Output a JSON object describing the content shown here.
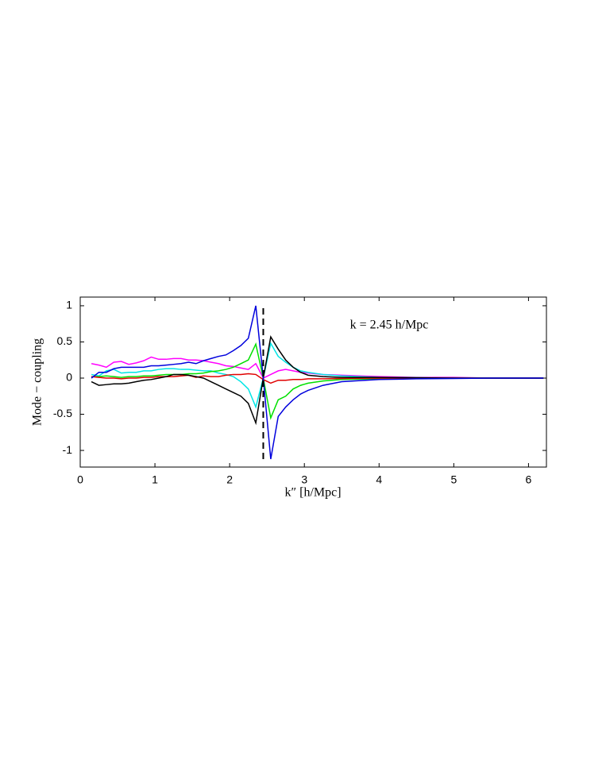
{
  "chart_data": {
    "type": "line",
    "xlabel": "k″  [h/Mpc]",
    "ylabel": "Mode − coupling",
    "annotation": "k = 2.45 h/Mpc",
    "xlim": [
      0,
      6.24
    ],
    "ylim": [
      -1.23,
      1.12
    ],
    "xticks": [
      0,
      1,
      2,
      3,
      4,
      5,
      6
    ],
    "yticks": [
      -1,
      -0.5,
      0,
      0.5,
      1
    ],
    "marker": {
      "x": 2.45,
      "y": [
        -1.12,
        0.97
      ],
      "color": "#000000"
    },
    "x": [
      0.15,
      0.25,
      0.35,
      0.45,
      0.55,
      0.65,
      0.75,
      0.85,
      0.95,
      1.05,
      1.15,
      1.25,
      1.35,
      1.45,
      1.55,
      1.65,
      1.75,
      1.85,
      1.95,
      2.05,
      2.15,
      2.25,
      2.35,
      2.45,
      2.55,
      2.65,
      2.75,
      2.85,
      2.95,
      3.05,
      3.25,
      3.5,
      4,
      4.5,
      5,
      5.5,
      6,
      6.2
    ],
    "series": [
      {
        "color": "#ff00ff",
        "values": [
          0.2,
          0.18,
          0.15,
          0.22,
          0.23,
          0.19,
          0.21,
          0.24,
          0.29,
          0.26,
          0.26,
          0.27,
          0.27,
          0.25,
          0.25,
          0.24,
          0.22,
          0.2,
          0.17,
          0.16,
          0.14,
          0.12,
          0.2,
          0,
          0.05,
          0.1,
          0.12,
          0.1,
          0.08,
          0.07,
          0.05,
          0.04,
          0.02,
          0.01,
          0.01,
          0,
          0,
          0
        ]
      },
      {
        "color": "#00e5e5",
        "values": [
          0.05,
          0.03,
          0.1,
          0.12,
          0.07,
          0.08,
          0.08,
          0.1,
          0.1,
          0.12,
          0.13,
          0.13,
          0.12,
          0.12,
          0.11,
          0.1,
          0.1,
          0.07,
          0.05,
          0.02,
          -0.05,
          -0.15,
          -0.4,
          0,
          0.48,
          0.3,
          0.22,
          0.15,
          0.1,
          0.08,
          0.05,
          0.03,
          0.01,
          0.005,
          0,
          0,
          0,
          0
        ]
      },
      {
        "color": "#00e000",
        "values": [
          0.02,
          0.02,
          0.03,
          0.02,
          0.01,
          0.02,
          0.02,
          0.03,
          0.03,
          0.04,
          0.05,
          0.05,
          0.05,
          0.06,
          0.06,
          0.07,
          0.09,
          0.1,
          0.12,
          0.15,
          0.2,
          0.25,
          0.47,
          0,
          -0.55,
          -0.3,
          -0.25,
          -0.15,
          -0.1,
          -0.07,
          -0.04,
          -0.02,
          -0.01,
          -0.005,
          0,
          0,
          0,
          0
        ]
      },
      {
        "color": "#e00000",
        "values": [
          0.02,
          0.01,
          0,
          0,
          -0.01,
          0,
          0,
          0.01,
          0.01,
          0.02,
          0.02,
          0.02,
          0.03,
          0.04,
          0.01,
          0.03,
          0.02,
          0.02,
          0.04,
          0.05,
          0.05,
          0.06,
          0.05,
          -0.02,
          -0.07,
          -0.03,
          -0.03,
          -0.02,
          -0.02,
          -0.01,
          -0.01,
          -0.005,
          0,
          0,
          0,
          0,
          0,
          0
        ]
      },
      {
        "color": "#000000",
        "values": [
          -0.05,
          -0.1,
          -0.09,
          -0.08,
          -0.08,
          -0.07,
          -0.05,
          -0.03,
          -0.02,
          0,
          0.02,
          0.05,
          0.05,
          0.04,
          0.02,
          0,
          -0.05,
          -0.1,
          -0.15,
          -0.2,
          -0.25,
          -0.35,
          -0.62,
          0,
          0.57,
          0.4,
          0.25,
          0.15,
          0.08,
          0.04,
          0.02,
          0.01,
          0.01,
          0.005,
          0,
          0,
          0,
          0
        ]
      },
      {
        "color": "#0000dd",
        "values": [
          0,
          0.08,
          0.08,
          0.13,
          0.15,
          0.15,
          0.15,
          0.15,
          0.17,
          0.17,
          0.18,
          0.19,
          0.2,
          0.22,
          0.2,
          0.24,
          0.27,
          0.3,
          0.32,
          0.38,
          0.45,
          0.55,
          1,
          0,
          -1.12,
          -0.53,
          -0.4,
          -0.3,
          -0.22,
          -0.17,
          -0.1,
          -0.05,
          -0.02,
          -0.01,
          -0.005,
          0,
          0,
          0
        ]
      }
    ]
  }
}
